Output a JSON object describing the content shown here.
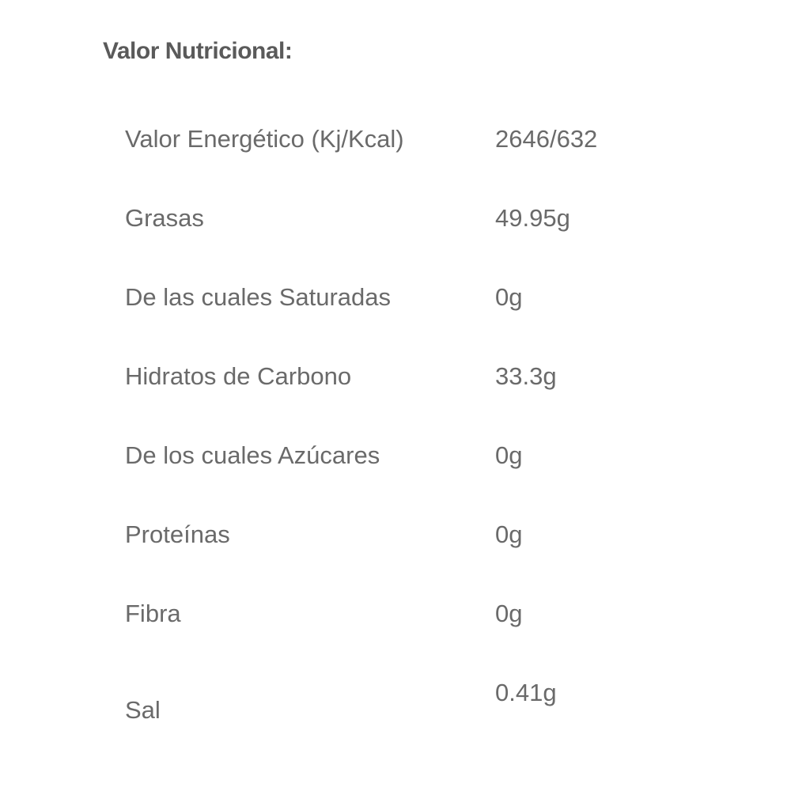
{
  "section_title": "Valor Nutricional:",
  "rows": [
    {
      "label": "Valor Energético (Kj/Kcal)",
      "value": "2646/632"
    },
    {
      "label": "Grasas",
      "value": "49.95g"
    },
    {
      "label": "De las cuales Saturadas",
      "value": "0g"
    },
    {
      "label": "Hidratos de Carbono",
      "value": "33.3g"
    },
    {
      "label": "De los cuales Azúcares",
      "value": "0g"
    },
    {
      "label": "Proteínas",
      "value": "0g"
    },
    {
      "label": "Fibra",
      "value": "0g"
    },
    {
      "label": "Sal",
      "value": "0.41g"
    }
  ]
}
